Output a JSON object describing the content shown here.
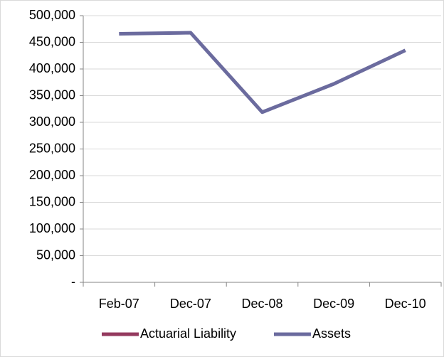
{
  "chart_data": {
    "type": "line",
    "categories": [
      "Feb-07",
      "Dec-07",
      "Dec-08",
      "Dec-09",
      "Dec-10"
    ],
    "series": [
      {
        "name": "Actuarial Liability",
        "color": "#943a5e",
        "values": [
          null,
          null,
          null,
          null,
          null
        ]
      },
      {
        "name": "Assets",
        "color": "#6b6b9e",
        "values": [
          466000,
          468000,
          319000,
          372000,
          435000
        ]
      }
    ],
    "ylim": [
      0,
      500000
    ],
    "yticks": [
      {
        "value": 0,
        "label": "-"
      },
      {
        "value": 50000,
        "label": "50,000"
      },
      {
        "value": 100000,
        "label": "100,000"
      },
      {
        "value": 150000,
        "label": "150,000"
      },
      {
        "value": 200000,
        "label": "200,000"
      },
      {
        "value": 250000,
        "label": "250,000"
      },
      {
        "value": 300000,
        "label": "300,000"
      },
      {
        "value": 350000,
        "label": "350,000"
      },
      {
        "value": 400000,
        "label": "400,000"
      },
      {
        "value": 450000,
        "label": "450,000"
      },
      {
        "value": 500000,
        "label": "500,000"
      }
    ],
    "grid": true,
    "legend": "bottom"
  }
}
